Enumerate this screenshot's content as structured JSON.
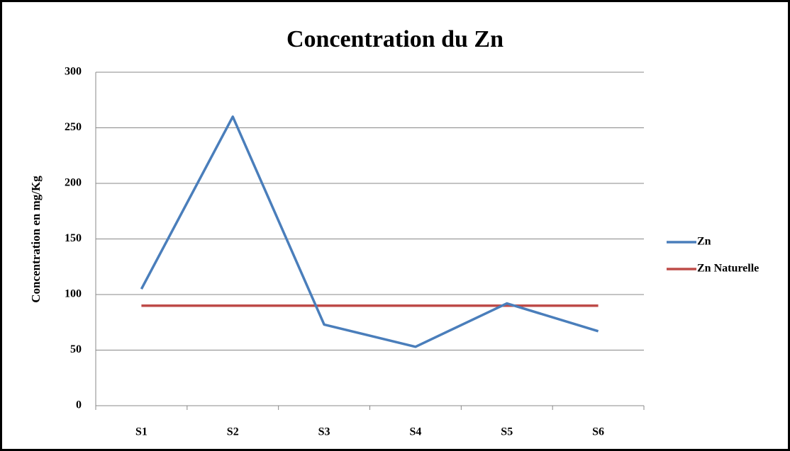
{
  "chart_data": {
    "type": "line",
    "title": "Concentration du Zn",
    "y_label": "Concentration en mg/Kg",
    "categories": [
      "S1",
      "S2",
      "S3",
      "S4",
      "S5",
      "S6"
    ],
    "series": [
      {
        "name": "Zn",
        "color": "#4a7ebb",
        "values": [
          105,
          260,
          73,
          53,
          92,
          67
        ]
      },
      {
        "name": "Zn Naturelle",
        "color": "#be4b48",
        "values": [
          90,
          90,
          90,
          90,
          90,
          90
        ]
      }
    ],
    "ylim": [
      0,
      300
    ],
    "yticks": [
      0,
      50,
      100,
      150,
      200,
      250,
      300
    ],
    "grid": true,
    "legend": "right"
  }
}
